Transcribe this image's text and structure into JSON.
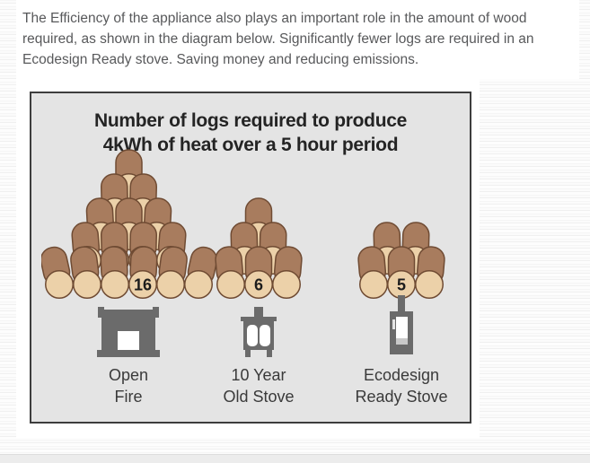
{
  "page": {
    "intro_text": "The Efficiency of the appliance also plays an important role in the amount of wood required, as shown in the diagram below. Significantly fewer logs are required in an Ecodesign Ready stove. Saving money and reducing emissions."
  },
  "diagram": {
    "title_line1": "Number of logs required to produce",
    "title_line2": "4kWh of heat over a 5 hour period",
    "columns": [
      {
        "log_count": "16",
        "rows_top_down": [
          1,
          2,
          3,
          4,
          6
        ],
        "label_line1": "Open",
        "label_line2": "Fire",
        "icon": "open-fire-icon"
      },
      {
        "log_count": "6",
        "rows_top_down": [
          1,
          2,
          3
        ],
        "label_line1": "10 Year",
        "label_line2": "Old Stove",
        "icon": "old-stove-icon"
      },
      {
        "log_count": "5",
        "rows_top_down": [
          2,
          3
        ],
        "label_line1": "Ecodesign",
        "label_line2": "Ready Stove",
        "icon": "ecodesign-stove-icon"
      }
    ],
    "colors": {
      "log_body": "#a87c5e",
      "log_face": "#ecd1a9",
      "log_outline": "#6f4b33",
      "icon_gray": "#6b6b6b",
      "icon_window_white": "#ffffff",
      "icon_vent_gray": "#c9c9c9",
      "box_bg": "#e4e4e4",
      "box_border": "#3d3d3d",
      "number_color": "#1c1c1c"
    }
  },
  "chart_data": {
    "type": "bar",
    "style": "pictogram-of-logs",
    "title": "Number of logs required to produce 4kWh of heat over a 5 hour period",
    "categories": [
      "Open Fire",
      "10 Year Old Stove",
      "Ecodesign Ready Stove"
    ],
    "values": [
      16,
      6,
      5
    ],
    "unit": "logs",
    "legend_position": "none",
    "grid": false
  }
}
